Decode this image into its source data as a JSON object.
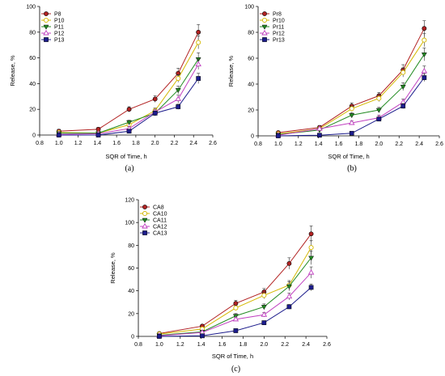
{
  "chart_data": [
    {
      "type": "line",
      "panel_label": "(a)",
      "xlabel": "SQR of Time, h",
      "ylabel": "Release, %",
      "xlim": [
        0.8,
        2.6
      ],
      "ylim": [
        0,
        100
      ],
      "xticks": [
        "0.8",
        "1.0",
        "1.2",
        "1.4",
        "1.6",
        "1.8",
        "2.0",
        "2.2",
        "2.4",
        "2.6"
      ],
      "yticks": [
        "0",
        "20",
        "40",
        "60",
        "80",
        "100"
      ],
      "legend_position": "top-left",
      "x": [
        1.0,
        1.41,
        1.73,
        2.0,
        2.24,
        2.45
      ],
      "series": [
        {
          "name": "P8",
          "color": "#b22222",
          "marker": "circle-filled",
          "values": [
            3,
            4.5,
            20,
            28,
            48,
            80
          ],
          "errors": [
            1.5,
            1.5,
            2,
            2.5,
            4,
            6
          ]
        },
        {
          "name": "P10",
          "color": "#d4b800",
          "marker": "circle-open",
          "values": [
            2,
            1.5,
            8,
            19,
            44,
            72
          ],
          "errors": [
            1,
            1,
            1.5,
            2,
            3,
            5
          ]
        },
        {
          "name": "P11",
          "color": "#228b22",
          "marker": "triangle-down",
          "values": [
            1.5,
            1.5,
            10,
            17,
            35,
            59
          ],
          "errors": [
            1,
            1,
            1.5,
            2,
            3,
            5
          ]
        },
        {
          "name": "P12",
          "color": "#c040c0",
          "marker": "triangle-up-open",
          "values": [
            0.5,
            1,
            5,
            18,
            28,
            55
          ],
          "errors": [
            1,
            1,
            1.5,
            2,
            3,
            4
          ]
        },
        {
          "name": "P13",
          "color": "#1c1c8c",
          "marker": "square-filled",
          "values": [
            0,
            0,
            3,
            17,
            22,
            44
          ],
          "errors": [
            0.5,
            0.5,
            1,
            1.5,
            2,
            4
          ]
        }
      ]
    },
    {
      "type": "line",
      "panel_label": "(b)",
      "xlabel": "SQR of Time, h",
      "ylabel": "Release, %",
      "xlim": [
        0.8,
        2.6
      ],
      "ylim": [
        0,
        100
      ],
      "xticks": [
        "0.8",
        "1.0",
        "1.2",
        "1.4",
        "1.6",
        "1.8",
        "2.0",
        "2.2",
        "2.4",
        "2.6"
      ],
      "yticks": [
        "0",
        "20",
        "40",
        "60",
        "80",
        "100"
      ],
      "legend_position": "top-left",
      "x": [
        1.0,
        1.41,
        1.73,
        2.0,
        2.24,
        2.45
      ],
      "series": [
        {
          "name": "Pr8",
          "color": "#b22222",
          "marker": "circle-filled",
          "values": [
            2.5,
            6.5,
            23,
            31,
            51,
            83
          ],
          "errors": [
            1,
            1.5,
            2.5,
            2.5,
            4,
            6
          ]
        },
        {
          "name": "Pr10",
          "color": "#d4b800",
          "marker": "circle-open",
          "values": [
            1.5,
            5.5,
            21,
            29,
            49,
            74
          ],
          "errors": [
            1,
            1.5,
            2,
            2.5,
            3.5,
            5
          ]
        },
        {
          "name": "Pr11",
          "color": "#228b22",
          "marker": "triangle-down",
          "values": [
            1,
            4.5,
            16,
            20,
            38,
            63
          ],
          "errors": [
            1,
            1,
            2,
            2,
            3,
            5
          ]
        },
        {
          "name": "Pr12",
          "color": "#c040c0",
          "marker": "triangle-up-open",
          "values": [
            0.5,
            5.5,
            10,
            14,
            26,
            50
          ],
          "errors": [
            0.5,
            1,
            1.5,
            2,
            2.5,
            4
          ]
        },
        {
          "name": "Pr13",
          "color": "#1c1c8c",
          "marker": "square-filled",
          "values": [
            0,
            0.5,
            2,
            13,
            23,
            45
          ],
          "errors": [
            0.5,
            0.5,
            0.5,
            1.5,
            2,
            3
          ]
        }
      ]
    },
    {
      "type": "line",
      "panel_label": "(c)",
      "xlabel": "SQR of Time, h",
      "ylabel": "Release, %",
      "xlim": [
        0.8,
        2.6
      ],
      "ylim": [
        0,
        120
      ],
      "xticks": [
        "0.8",
        "1.0",
        "1.2",
        "1.4",
        "1.6",
        "1.8",
        "2.0",
        "2.2",
        "2.4",
        "2.6"
      ],
      "yticks": [
        "0",
        "20",
        "40",
        "60",
        "80",
        "100",
        "120"
      ],
      "legend_position": "top-left",
      "x": [
        1.0,
        1.41,
        1.73,
        2.0,
        2.24,
        2.45
      ],
      "series": [
        {
          "name": "CA8",
          "color": "#b22222",
          "marker": "circle-filled",
          "values": [
            2.5,
            9,
            29,
            39,
            64,
            90
          ],
          "errors": [
            1,
            1.5,
            2.5,
            3,
            5,
            7
          ]
        },
        {
          "name": "CA10",
          "color": "#d4b800",
          "marker": "circle-open",
          "values": [
            2,
            6.5,
            25,
            36,
            45,
            78
          ],
          "errors": [
            1,
            1.5,
            2,
            3,
            4,
            6
          ]
        },
        {
          "name": "CA11",
          "color": "#228b22",
          "marker": "triangle-down",
          "values": [
            1,
            4,
            18,
            26,
            44,
            69
          ],
          "errors": [
            1,
            1,
            2,
            2.5,
            4,
            6
          ]
        },
        {
          "name": "CA12",
          "color": "#c040c0",
          "marker": "triangle-up-open",
          "values": [
            0.5,
            3.5,
            15,
            19,
            35,
            56
          ],
          "errors": [
            0.5,
            1,
            1.5,
            2,
            3,
            5
          ]
        },
        {
          "name": "CA13",
          "color": "#1c1c8c",
          "marker": "square-filled",
          "values": [
            0,
            0.5,
            5,
            12,
            26,
            43
          ],
          "errors": [
            0.5,
            0.5,
            1,
            1.5,
            2,
            3
          ]
        }
      ]
    }
  ]
}
